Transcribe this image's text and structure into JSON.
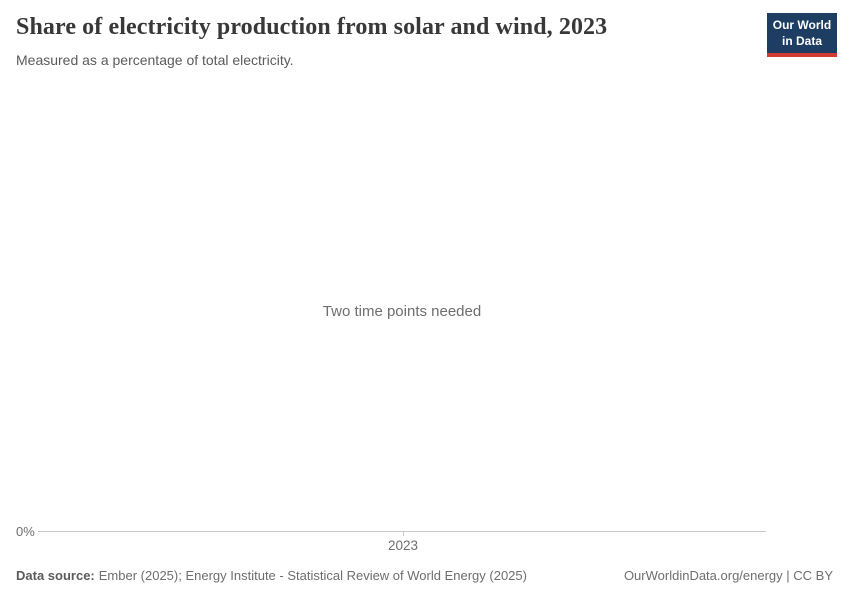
{
  "header": {
    "title": "Share of electricity production from solar and wind, 2023",
    "subtitle": "Measured as a percentage of total electricity.",
    "logo": {
      "line1": "Our World",
      "line2": "in Data"
    }
  },
  "chart": {
    "empty_message": "Two time points needed",
    "y_axis_tick": "0%",
    "x_axis_tick": "2023"
  },
  "footer": {
    "source_label": "Data source:",
    "source_text": "Ember (2025); Energy Institute - Statistical Review of World Energy (2025)",
    "license": "OurWorldinData.org/energy | CC BY"
  },
  "colors": {
    "logo_navy": "#1d3d63",
    "logo_red": "#d13d33",
    "title_text": "#383838",
    "muted_text": "#6e6e6e",
    "axis_line": "#c8c8c8"
  },
  "chart_data": {
    "type": "line",
    "title": "Share of electricity production from solar and wind, 2023",
    "subtitle": "Measured as a percentage of total electricity.",
    "x_tick_labels": [
      "2023"
    ],
    "y_tick_labels": [
      "0%"
    ],
    "series": [],
    "annotations": [
      "Two time points needed"
    ],
    "grid": false,
    "legend": "none",
    "note_state": "empty chart – no data series plotted"
  }
}
